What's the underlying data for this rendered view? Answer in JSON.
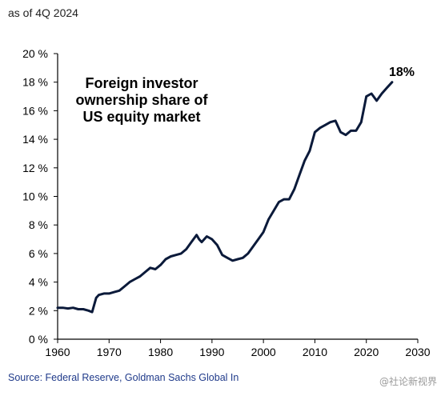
{
  "header": {
    "as_of": "as of 4Q 2024"
  },
  "footer": {
    "source": "Source: Federal Reserve, Goldman Sachs Global In",
    "watermark": "@社论新视界"
  },
  "colors": {
    "line": "#0b1a3a",
    "axis": "#000000",
    "text": "#000000",
    "source": "#1f3a8a"
  },
  "chart_data": {
    "type": "line",
    "title": "Foreign investor\nownership share of\nUS equity market",
    "end_label": "18%",
    "xlim": [
      1960,
      2030
    ],
    "ylim": [
      0,
      20
    ],
    "x_ticks": [
      1960,
      1970,
      1980,
      1990,
      2000,
      2010,
      2020,
      2030
    ],
    "y_ticks": [
      {
        "value": 0,
        "label": "0 %"
      },
      {
        "value": 2,
        "label": "2 %"
      },
      {
        "value": 4,
        "label": "4 %"
      },
      {
        "value": 6,
        "label": "6 %"
      },
      {
        "value": 8,
        "label": "8 %"
      },
      {
        "value": 10,
        "label": "10 %"
      },
      {
        "value": 12,
        "label": "12 %"
      },
      {
        "value": 14,
        "label": "14 %"
      },
      {
        "value": 16,
        "label": "16 %"
      },
      {
        "value": 18,
        "label": "18 %"
      },
      {
        "value": 20,
        "label": "20 %"
      }
    ],
    "grid": false,
    "series": [
      {
        "x": [
          1960,
          1961,
          1962,
          1963,
          1964,
          1965,
          1966,
          1966.7,
          1967.5,
          1968,
          1969,
          1970,
          1971,
          1972,
          1973,
          1974,
          1975,
          1976,
          1977,
          1978,
          1979,
          1980,
          1981,
          1982,
          1983,
          1984,
          1985,
          1986,
          1987,
          1987.5,
          1988,
          1989,
          1990,
          1991,
          1992,
          1993,
          1994,
          1995,
          1996,
          1997,
          1998,
          1999,
          2000,
          2001,
          2002,
          2003,
          2004,
          2005,
          2006,
          2007,
          2008,
          2009,
          2010,
          2011,
          2012,
          2013,
          2014,
          2015,
          2016,
          2017,
          2018,
          2019,
          2020,
          2021,
          2022,
          2023,
          2024,
          2025
        ],
        "y": [
          2.2,
          2.2,
          2.15,
          2.2,
          2.1,
          2.1,
          2.0,
          1.9,
          2.9,
          3.1,
          3.2,
          3.2,
          3.3,
          3.4,
          3.7,
          4.0,
          4.2,
          4.4,
          4.7,
          5.0,
          4.9,
          5.2,
          5.6,
          5.8,
          5.9,
          6.0,
          6.3,
          6.8,
          7.3,
          7.0,
          6.8,
          7.2,
          7.0,
          6.6,
          5.9,
          5.7,
          5.5,
          5.6,
          5.7,
          6.0,
          6.5,
          7.0,
          7.5,
          8.4,
          9.0,
          9.6,
          9.8,
          9.8,
          10.5,
          11.5,
          12.5,
          13.2,
          14.5,
          14.8,
          15.0,
          15.2,
          15.3,
          14.5,
          14.3,
          14.6,
          14.6,
          15.2,
          17.0,
          17.2,
          16.7,
          17.2,
          17.6,
          18.0
        ]
      }
    ]
  }
}
